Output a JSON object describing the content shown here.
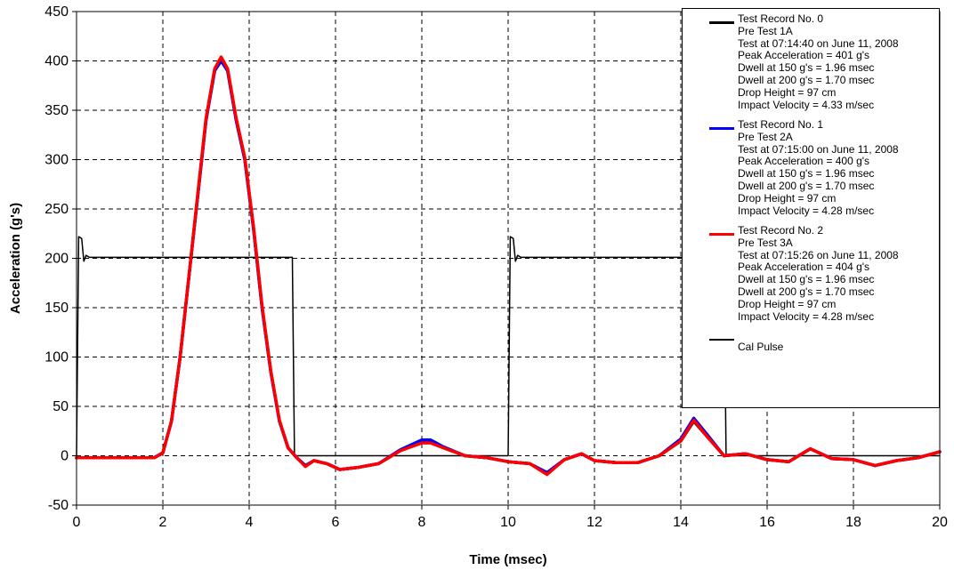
{
  "chart_data": {
    "type": "line",
    "title": "",
    "xlabel": "Time (msec)",
    "ylabel": "Acceleration (g's)",
    "xlim": [
      0,
      20
    ],
    "ylim": [
      -50,
      450
    ],
    "x_ticks": [
      "0",
      "2",
      "4",
      "6",
      "8",
      "10",
      "12",
      "14",
      "16",
      "18",
      "20"
    ],
    "y_ticks": [
      "-50",
      "0",
      "50",
      "100",
      "150",
      "200",
      "250",
      "300",
      "350",
      "400",
      "450"
    ],
    "grid": true,
    "legend_position": "top-right",
    "series": [
      {
        "name": "Test Record No. 0",
        "color": "#000000",
        "legend_lines": [
          "Test Record No. 0",
          "Pre Test 1A",
          "Test at 07:14:40 on June 11, 2008",
          "Peak Acceleration = 401 g's",
          "Dwell at 150 g's = 1.96 msec",
          "Dwell at 200 g's = 1.70 msec",
          "Drop Height = 97 cm",
          "Impact Velocity = 4.33 m/sec"
        ],
        "x": [
          0,
          1.8,
          2.0,
          2.2,
          2.4,
          2.6,
          2.8,
          3.0,
          3.2,
          3.35,
          3.5,
          3.7,
          3.9,
          4.1,
          4.3,
          4.5,
          4.7,
          4.9,
          5.1,
          5.3,
          5.5,
          5.8,
          6.1,
          6.5,
          7.0,
          7.5,
          8.0,
          8.2,
          8.5,
          9.0,
          9.5,
          10.0,
          10.5,
          10.9,
          11.3,
          11.7,
          12.0,
          12.5,
          13.0,
          13.5,
          14.0,
          14.3,
          14.6,
          15.0,
          15.5,
          16.0,
          16.5,
          17.0,
          17.5,
          18.0,
          18.5,
          19.0,
          19.5,
          20.0
        ],
        "values": [
          -2,
          -2,
          3,
          35,
          100,
          180,
          260,
          340,
          390,
          401,
          390,
          340,
          300,
          230,
          150,
          85,
          35,
          8,
          -2,
          -10,
          -5,
          -8,
          -14,
          -12,
          -8,
          5,
          14,
          14,
          8,
          0,
          -2,
          -6,
          -8,
          -18,
          -4,
          2,
          -5,
          -7,
          -7,
          0,
          15,
          35,
          20,
          0,
          2,
          -4,
          -6,
          7,
          -3,
          -4,
          -10,
          -5,
          -2,
          4
        ]
      },
      {
        "name": "Test Record No. 1",
        "color": "#0000ff",
        "legend_lines": [
          "Test Record No. 1",
          "Pre Test 2A",
          "Test at 07:15:00 on June 11, 2008",
          "Peak Acceleration = 400 g's",
          "Dwell at 150 g's = 1.96 msec",
          "Dwell at 200 g's = 1.70 msec",
          "Drop Height = 97 cm",
          "Impact Velocity = 4.28 m/sec"
        ],
        "x": [
          0,
          1.8,
          2.0,
          2.2,
          2.4,
          2.6,
          2.8,
          3.0,
          3.2,
          3.35,
          3.5,
          3.7,
          3.9,
          4.1,
          4.3,
          4.5,
          4.7,
          4.9,
          5.1,
          5.3,
          5.5,
          5.8,
          6.1,
          6.5,
          7.0,
          7.5,
          8.0,
          8.2,
          8.5,
          9.0,
          9.5,
          10.0,
          10.5,
          10.9,
          11.3,
          11.7,
          12.0,
          12.5,
          13.0,
          13.5,
          14.0,
          14.3,
          14.6,
          15.0,
          15.5,
          16.0,
          16.5,
          17.0,
          17.5,
          18.0,
          18.5,
          19.0,
          19.5,
          20.0
        ],
        "values": [
          -2,
          -2,
          3,
          35,
          100,
          180,
          260,
          340,
          390,
          400,
          390,
          340,
          300,
          230,
          150,
          85,
          35,
          8,
          -2,
          -10,
          -5,
          -8,
          -14,
          -12,
          -8,
          6,
          16,
          16,
          9,
          0,
          -2,
          -6,
          -8,
          -17,
          -4,
          2,
          -5,
          -7,
          -7,
          0,
          17,
          38,
          22,
          0,
          2,
          -4,
          -6,
          7,
          -3,
          -4,
          -10,
          -5,
          -2,
          4
        ]
      },
      {
        "name": "Test Record No. 2",
        "color": "#ff0000",
        "legend_lines": [
          "Test Record No. 2",
          "Pre Test 3A",
          "Test at 07:15:26 on June 11, 2008",
          "Peak Acceleration = 404 g's",
          "Dwell at 150 g's = 1.96 msec",
          "Dwell at 200 g's = 1.70 msec",
          "Drop Height = 97 cm",
          "Impact Velocity = 4.28 m/sec"
        ],
        "x": [
          0,
          1.8,
          2.0,
          2.2,
          2.4,
          2.6,
          2.8,
          3.0,
          3.2,
          3.35,
          3.5,
          3.7,
          3.9,
          4.1,
          4.3,
          4.5,
          4.7,
          4.9,
          5.1,
          5.3,
          5.5,
          5.8,
          6.1,
          6.5,
          7.0,
          7.5,
          8.0,
          8.2,
          8.5,
          9.0,
          9.5,
          10.0,
          10.5,
          10.9,
          11.3,
          11.7,
          12.0,
          12.5,
          13.0,
          13.5,
          14.0,
          14.3,
          14.6,
          15.0,
          15.5,
          16.0,
          16.5,
          17.0,
          17.5,
          18.0,
          18.5,
          19.0,
          19.5,
          20.0
        ],
        "values": [
          -2,
          -2,
          3,
          35,
          100,
          180,
          262,
          342,
          392,
          404,
          392,
          342,
          302,
          232,
          152,
          86,
          36,
          8,
          -2,
          -11,
          -5,
          -8,
          -14,
          -12,
          -8,
          5,
          13,
          13,
          8,
          0,
          -2,
          -6,
          -8,
          -19,
          -4,
          2,
          -5,
          -7,
          -7,
          0,
          15,
          36,
          20,
          0,
          2,
          -4,
          -6,
          7,
          -3,
          -4,
          -10,
          -5,
          -2,
          4
        ]
      },
      {
        "name": "Cal Pulse",
        "color": "#000000",
        "legend_lines": [
          "Cal Pulse"
        ],
        "x": [
          0,
          0.05,
          0.12,
          0.17,
          0.22,
          0.3,
          5.0,
          5.05,
          10.0,
          10.05,
          10.12,
          10.17,
          10.22,
          10.3,
          15.0,
          15.05,
          20.0
        ],
        "values": [
          0,
          222,
          220,
          197,
          203,
          201,
          201,
          0,
          0,
          222,
          220,
          197,
          203,
          201,
          201,
          0,
          0
        ]
      }
    ]
  }
}
